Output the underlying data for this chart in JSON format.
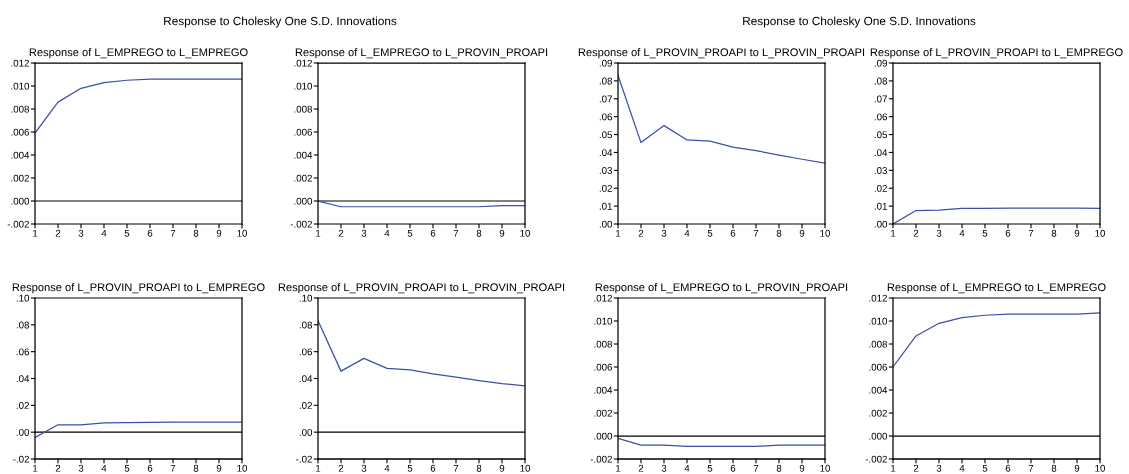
{
  "chart_data": [
    {
      "type": "line",
      "subtitle": "Response to Cholesky One S.D. Innovations",
      "title": "Response of L_EMPREGO to L_EMPREGO",
      "x": [
        1,
        2,
        3,
        4,
        5,
        6,
        7,
        8,
        9,
        10
      ],
      "series": [
        {
          "color": "#3b4fa8",
          "values": [
            0.0059,
            0.0086,
            0.0098,
            0.0103,
            0.0105,
            0.0106,
            0.0106,
            0.0106,
            0.0106,
            0.0106
          ]
        }
      ],
      "xlim": [
        1,
        10
      ],
      "xticks": [
        1,
        2,
        3,
        4,
        5,
        6,
        7,
        8,
        9,
        10
      ],
      "ylim": [
        -0.002,
        0.012
      ],
      "yticks": [
        {
          "value": -0.002,
          "label": "-.002"
        },
        {
          "value": 0,
          "label": ".000"
        },
        {
          "value": 0.002,
          "label": ".002"
        },
        {
          "value": 0.004,
          "label": ".004"
        },
        {
          "value": 0.006,
          "label": ".006"
        },
        {
          "value": 0.008,
          "label": ".008"
        },
        {
          "value": 0.01,
          "label": ".010"
        },
        {
          "value": 0.012,
          "label": ".012"
        }
      ],
      "ref_lines": [
        {
          "axis": "y",
          "value": 0,
          "color": "#000000"
        }
      ]
    },
    {
      "type": "line",
      "title": "Response of L_EMPREGO to L_PROVIN_PROAPI",
      "x": [
        1,
        2,
        3,
        4,
        5,
        6,
        7,
        8,
        9,
        10
      ],
      "series": [
        {
          "color": "#3b4fa8",
          "values": [
            0.0,
            -0.0005,
            -0.0005,
            -0.0005,
            -0.0005,
            -0.0005,
            -0.0005,
            -0.0005,
            -0.0004,
            -0.0004
          ]
        }
      ],
      "xlim": [
        1,
        10
      ],
      "xticks": [
        1,
        2,
        3,
        4,
        5,
        6,
        7,
        8,
        9,
        10
      ],
      "ylim": [
        -0.002,
        0.012
      ],
      "yticks": [
        {
          "value": -0.002,
          "label": "-.002"
        },
        {
          "value": 0,
          "label": ".000"
        },
        {
          "value": 0.002,
          "label": ".002"
        },
        {
          "value": 0.004,
          "label": ".004"
        },
        {
          "value": 0.006,
          "label": ".006"
        },
        {
          "value": 0.008,
          "label": ".008"
        },
        {
          "value": 0.01,
          "label": ".010"
        },
        {
          "value": 0.012,
          "label": ".012"
        }
      ],
      "ref_lines": [
        {
          "axis": "y",
          "value": 0,
          "color": "#000000"
        }
      ]
    },
    {
      "type": "line",
      "subtitle": "Response to Cholesky One S.D. Innovations",
      "title": "Response of L_PROVIN_PROAPI to L_PROVIN_PROAPI",
      "x": [
        1,
        2,
        3,
        4,
        5,
        6,
        7,
        8,
        9,
        10
      ],
      "series": [
        {
          "color": "#3b4fa8",
          "values": [
            0.083,
            0.0455,
            0.055,
            0.047,
            0.0463,
            0.043,
            0.041,
            0.0385,
            0.0362,
            0.034
          ]
        }
      ],
      "xlim": [
        1,
        10
      ],
      "xticks": [
        1,
        2,
        3,
        4,
        5,
        6,
        7,
        8,
        9,
        10
      ],
      "ylim": [
        0,
        0.09
      ],
      "yticks": [
        {
          "value": 0,
          "label": ".00"
        },
        {
          "value": 0.01,
          "label": ".01"
        },
        {
          "value": 0.02,
          "label": ".02"
        },
        {
          "value": 0.03,
          "label": ".03"
        },
        {
          "value": 0.04,
          "label": ".04"
        },
        {
          "value": 0.05,
          "label": ".05"
        },
        {
          "value": 0.06,
          "label": ".06"
        },
        {
          "value": 0.07,
          "label": ".07"
        },
        {
          "value": 0.08,
          "label": ".08"
        },
        {
          "value": 0.09,
          "label": ".09"
        }
      ]
    },
    {
      "type": "line",
      "title": "Response of L_PROVIN_PROAPI to L_EMPREGO",
      "x": [
        1,
        2,
        3,
        4,
        5,
        6,
        7,
        8,
        9,
        10
      ],
      "series": [
        {
          "color": "#3b4fa8",
          "values": [
            0.0,
            0.0075,
            0.0077,
            0.0088,
            0.0088,
            0.0089,
            0.0089,
            0.0089,
            0.0089,
            0.0088
          ]
        }
      ],
      "xlim": [
        1,
        10
      ],
      "xticks": [
        1,
        2,
        3,
        4,
        5,
        6,
        7,
        8,
        9,
        10
      ],
      "ylim": [
        0,
        0.09
      ],
      "yticks": [
        {
          "value": 0,
          "label": ".00"
        },
        {
          "value": 0.01,
          "label": ".01"
        },
        {
          "value": 0.02,
          "label": ".02"
        },
        {
          "value": 0.03,
          "label": ".03"
        },
        {
          "value": 0.04,
          "label": ".04"
        },
        {
          "value": 0.05,
          "label": ".05"
        },
        {
          "value": 0.06,
          "label": ".06"
        },
        {
          "value": 0.07,
          "label": ".07"
        },
        {
          "value": 0.08,
          "label": ".08"
        },
        {
          "value": 0.09,
          "label": ".09"
        }
      ]
    },
    {
      "type": "line",
      "title": "Response of L_PROVIN_PROAPI to L_EMPREGO",
      "x": [
        1,
        2,
        3,
        4,
        5,
        6,
        7,
        8,
        9,
        10
      ],
      "series": [
        {
          "color": "#3b4fa8",
          "values": [
            -0.004,
            0.0055,
            0.0055,
            0.007,
            0.0072,
            0.0073,
            0.0074,
            0.0075,
            0.0075,
            0.0075
          ]
        }
      ],
      "xlim": [
        1,
        10
      ],
      "xticks": [
        1,
        2,
        3,
        4,
        5,
        6,
        7,
        8,
        9,
        10
      ],
      "ylim": [
        -0.02,
        0.1
      ],
      "yticks": [
        {
          "value": -0.02,
          "label": "-.02"
        },
        {
          "value": 0,
          "label": ".00"
        },
        {
          "value": 0.02,
          "label": ".02"
        },
        {
          "value": 0.04,
          "label": ".04"
        },
        {
          "value": 0.06,
          "label": ".06"
        },
        {
          "value": 0.08,
          "label": ".08"
        },
        {
          "value": 0.1,
          "label": ".10"
        }
      ],
      "ref_lines": [
        {
          "axis": "y",
          "value": 0,
          "color": "#000000"
        }
      ]
    },
    {
      "type": "line",
      "title": "Response of L_PROVIN_PROAPI to L_PROVIN_PROAPI",
      "x": [
        1,
        2,
        3,
        4,
        5,
        6,
        7,
        8,
        9,
        10
      ],
      "series": [
        {
          "color": "#3b4fa8",
          "values": [
            0.083,
            0.0455,
            0.055,
            0.0475,
            0.0465,
            0.0435,
            0.041,
            0.0385,
            0.0362,
            0.0345
          ]
        }
      ],
      "xlim": [
        1,
        10
      ],
      "xticks": [
        1,
        2,
        3,
        4,
        5,
        6,
        7,
        8,
        9,
        10
      ],
      "ylim": [
        -0.02,
        0.1
      ],
      "yticks": [
        {
          "value": -0.02,
          "label": "-.02"
        },
        {
          "value": 0,
          "label": ".00"
        },
        {
          "value": 0.02,
          "label": ".02"
        },
        {
          "value": 0.04,
          "label": ".04"
        },
        {
          "value": 0.06,
          "label": ".06"
        },
        {
          "value": 0.08,
          "label": ".08"
        },
        {
          "value": 0.1,
          "label": ".10"
        }
      ],
      "ref_lines": [
        {
          "axis": "y",
          "value": 0,
          "color": "#000000"
        }
      ]
    },
    {
      "type": "line",
      "title": "Response of L_EMPREGO to L_PROVIN_PROAPI",
      "x": [
        1,
        2,
        3,
        4,
        5,
        6,
        7,
        8,
        9,
        10
      ],
      "series": [
        {
          "color": "#3b4fa8",
          "values": [
            -0.0002,
            -0.0008,
            -0.0008,
            -0.0009,
            -0.0009,
            -0.0009,
            -0.0009,
            -0.0008,
            -0.0008,
            -0.0008
          ]
        }
      ],
      "xlim": [
        1,
        10
      ],
      "xticks": [
        1,
        2,
        3,
        4,
        5,
        6,
        7,
        8,
        9,
        10
      ],
      "ylim": [
        -0.002,
        0.012
      ],
      "yticks": [
        {
          "value": -0.002,
          "label": "-.002"
        },
        {
          "value": 0,
          "label": ".000"
        },
        {
          "value": 0.002,
          "label": ".002"
        },
        {
          "value": 0.004,
          "label": ".004"
        },
        {
          "value": 0.006,
          "label": ".006"
        },
        {
          "value": 0.008,
          "label": ".008"
        },
        {
          "value": 0.01,
          "label": ".010"
        },
        {
          "value": 0.012,
          "label": ".012"
        }
      ],
      "ref_lines": [
        {
          "axis": "y",
          "value": 0,
          "color": "#000000"
        }
      ]
    },
    {
      "type": "line",
      "title": "Response of L_EMPREGO to L_EMPREGO",
      "x": [
        1,
        2,
        3,
        4,
        5,
        6,
        7,
        8,
        9,
        10
      ],
      "series": [
        {
          "color": "#3b4fa8",
          "values": [
            0.006,
            0.0087,
            0.0098,
            0.0103,
            0.0105,
            0.0106,
            0.0106,
            0.0106,
            0.0106,
            0.0107
          ]
        }
      ],
      "xlim": [
        1,
        10
      ],
      "xticks": [
        1,
        2,
        3,
        4,
        5,
        6,
        7,
        8,
        9,
        10
      ],
      "ylim": [
        -0.002,
        0.012
      ],
      "yticks": [
        {
          "value": -0.002,
          "label": "-.002"
        },
        {
          "value": 0,
          "label": ".000"
        },
        {
          "value": 0.002,
          "label": ".002"
        },
        {
          "value": 0.004,
          "label": ".004"
        },
        {
          "value": 0.006,
          "label": ".006"
        },
        {
          "value": 0.008,
          "label": ".008"
        },
        {
          "value": 0.01,
          "label": ".010"
        },
        {
          "value": 0.012,
          "label": ".012"
        }
      ],
      "ref_lines": [
        {
          "axis": "y",
          "value": 0,
          "color": "#000000"
        }
      ]
    }
  ]
}
